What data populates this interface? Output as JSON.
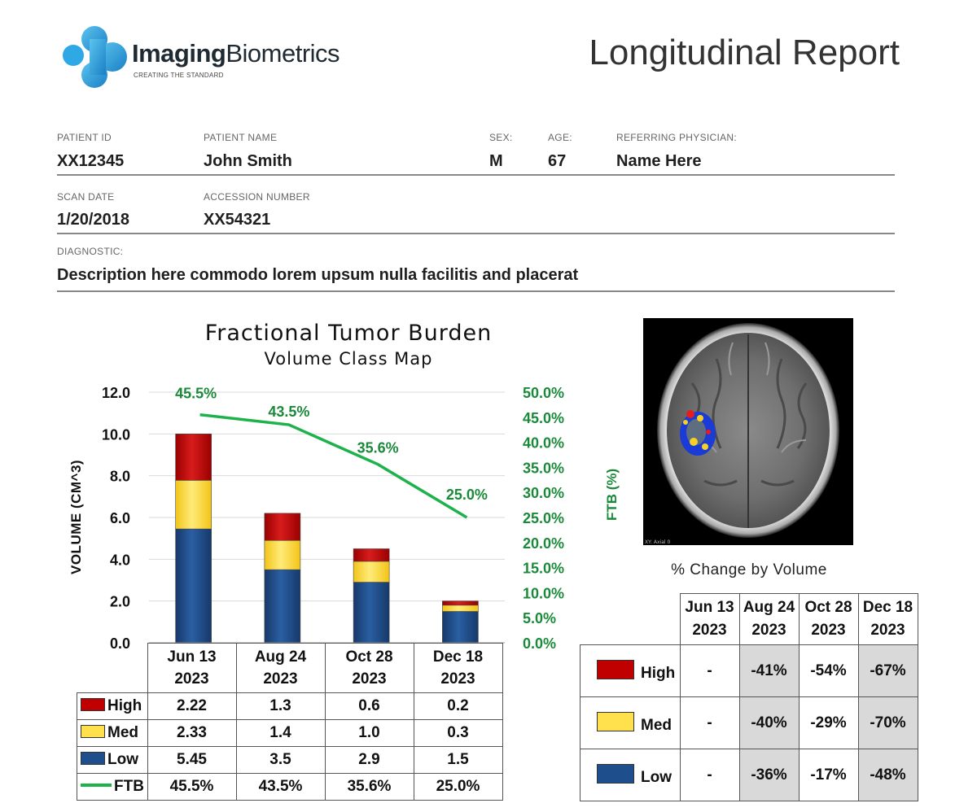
{
  "header": {
    "logo_bold": "Imaging",
    "logo_light": "Biometrics",
    "logo_tagline": "CREATING THE STANDARD",
    "report_title": "Longitudinal Report"
  },
  "patient": {
    "id_label": "PATIENT ID",
    "id": "XX12345",
    "name_label": "PATIENT NAME",
    "name": "John Smith",
    "sex_label": "SEX:",
    "sex": "M",
    "age_label": "AGE:",
    "age": "67",
    "physician_label": "REFERRING PHYSICIAN:",
    "physician": "Name Here",
    "scan_date_label": "SCAN DATE",
    "scan_date": "1/20/2018",
    "accession_label": "ACCESSION NUMBER",
    "accession": "XX54321",
    "diagnostic_label": "DIAGNOSTIC:",
    "diagnostic": "Description here commodo lorem upsum nulla facilitis and placerat"
  },
  "colors": {
    "high": "#c00000",
    "med": "#ffe14d",
    "low": "#1f4e8c",
    "ftb": "#1db24b",
    "ftb_text": "#1a8a3a"
  },
  "chart_data": {
    "type": "bar",
    "title": "Fractional Tumor Burden",
    "subtitle": "Volume Class Map",
    "ylabel": "VOLUME (CM^3)",
    "y2label": "FTB (%)",
    "categories": [
      "Jun 13 2023",
      "Aug 24 2023",
      "Oct 28 2023",
      "Dec 18 2023"
    ],
    "category_lines": [
      [
        "Jun 13",
        "2023"
      ],
      [
        "Aug 24",
        "2023"
      ],
      [
        "Oct 28",
        "2023"
      ],
      [
        "Dec 18",
        "2023"
      ]
    ],
    "ylim": [
      0,
      12
    ],
    "yticks": [
      "0.0",
      "2.0",
      "4.0",
      "6.0",
      "8.0",
      "10.0",
      "12.0"
    ],
    "y2lim": [
      0,
      50
    ],
    "y2ticks": [
      "0.0%",
      "5.0%",
      "10.0%",
      "15.0%",
      "20.0%",
      "25.0%",
      "30.0%",
      "35.0%",
      "40.0%",
      "45.0%",
      "50.0%"
    ],
    "stacked": true,
    "series": [
      {
        "name": "Low",
        "values": [
          5.45,
          3.5,
          2.9,
          1.5
        ],
        "labels": [
          "5.45",
          "3.5",
          "2.9",
          "1.5"
        ]
      },
      {
        "name": "Med",
        "values": [
          2.33,
          1.4,
          1.0,
          0.3
        ],
        "labels": [
          "2.33",
          "1.4",
          "1.0",
          "0.3"
        ]
      },
      {
        "name": "High",
        "values": [
          2.22,
          1.3,
          0.6,
          0.2
        ],
        "labels": [
          "2.22",
          "1.3",
          "0.6",
          "0.2"
        ]
      }
    ],
    "line_series": {
      "name": "FTB",
      "type": "line",
      "axis": "right",
      "values": [
        45.5,
        43.5,
        35.6,
        25.0
      ],
      "labels": [
        "45.5%",
        "43.5%",
        "35.6%",
        "25.0%"
      ]
    },
    "grid": true
  },
  "data_table": {
    "rows": [
      {
        "name": "High",
        "color": "#c00000",
        "values": [
          "2.22",
          "1.3",
          "0.6",
          "0.2"
        ]
      },
      {
        "name": "Med",
        "color": "#ffe14d",
        "values": [
          "2.33",
          "1.4",
          "1.0",
          "0.3"
        ]
      },
      {
        "name": "Low",
        "color": "#1f4e8c",
        "values": [
          "5.45",
          "3.5",
          "2.9",
          "1.5"
        ]
      },
      {
        "name": "FTB",
        "color": "#1db24b",
        "values": [
          "45.5%",
          "43.5%",
          "35.6%",
          "25.0%"
        ]
      }
    ]
  },
  "brain_image": {
    "caption": "XY: Axial 0"
  },
  "pct_change": {
    "title": "% Change by Volume",
    "columns": [
      [
        "Jun 13",
        "2023"
      ],
      [
        "Aug 24",
        "2023"
      ],
      [
        "Oct 28",
        "2023"
      ],
      [
        "Dec 18",
        "2023"
      ]
    ],
    "rows": [
      {
        "name": "High",
        "color": "#c00000",
        "values": [
          "-",
          "-41%",
          "-54%",
          "-67%"
        ]
      },
      {
        "name": "Med",
        "color": "#ffe14d",
        "values": [
          "-",
          "-40%",
          "-29%",
          "-70%"
        ]
      },
      {
        "name": "Low",
        "color": "#1f4e8c",
        "values": [
          "-",
          "-36%",
          "-17%",
          "-48%"
        ]
      }
    ]
  }
}
